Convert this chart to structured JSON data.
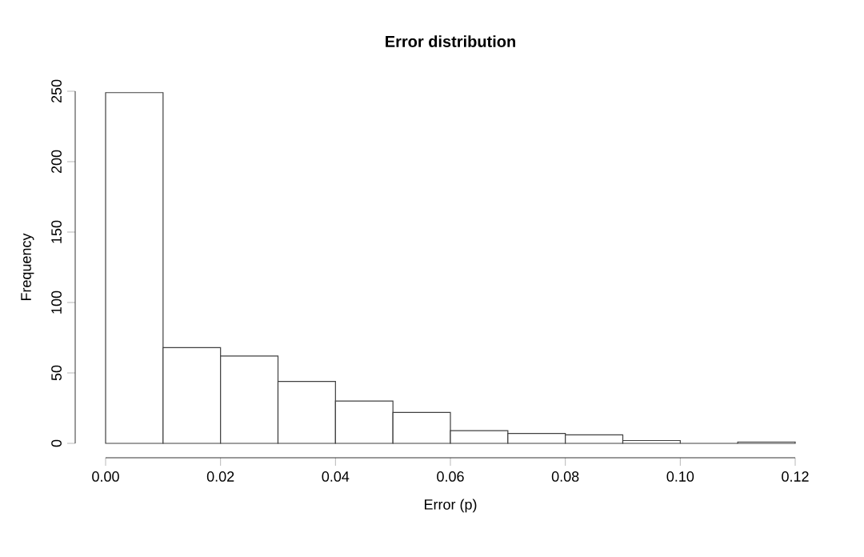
{
  "chart_data": {
    "type": "histogram",
    "title": "Error distribution",
    "xlabel": "Error (p)",
    "ylabel": "Frequency",
    "bins": [
      0,
      0.01,
      0.02,
      0.03,
      0.04,
      0.05,
      0.06,
      0.07,
      0.08,
      0.09,
      0.1,
      0.11,
      0.12
    ],
    "values": [
      249,
      68,
      62,
      44,
      30,
      22,
      9,
      7,
      6,
      2,
      0,
      1
    ],
    "color": "#ffffff",
    "xlim": [
      0,
      0.12
    ],
    "ylim": [
      0,
      250
    ],
    "xticks": [
      {
        "value": 0,
        "label": "0.00"
      },
      {
        "value": 0.02,
        "label": "0.02"
      },
      {
        "value": 0.04,
        "label": "0.04"
      },
      {
        "value": 0.06,
        "label": "0.06"
      },
      {
        "value": 0.08,
        "label": "0.08"
      },
      {
        "value": 0.1,
        "label": "0.10"
      },
      {
        "value": 0.12,
        "label": "0.12"
      }
    ],
    "yticks": [
      0,
      50,
      100,
      150,
      200,
      250
    ],
    "grid": false
  }
}
